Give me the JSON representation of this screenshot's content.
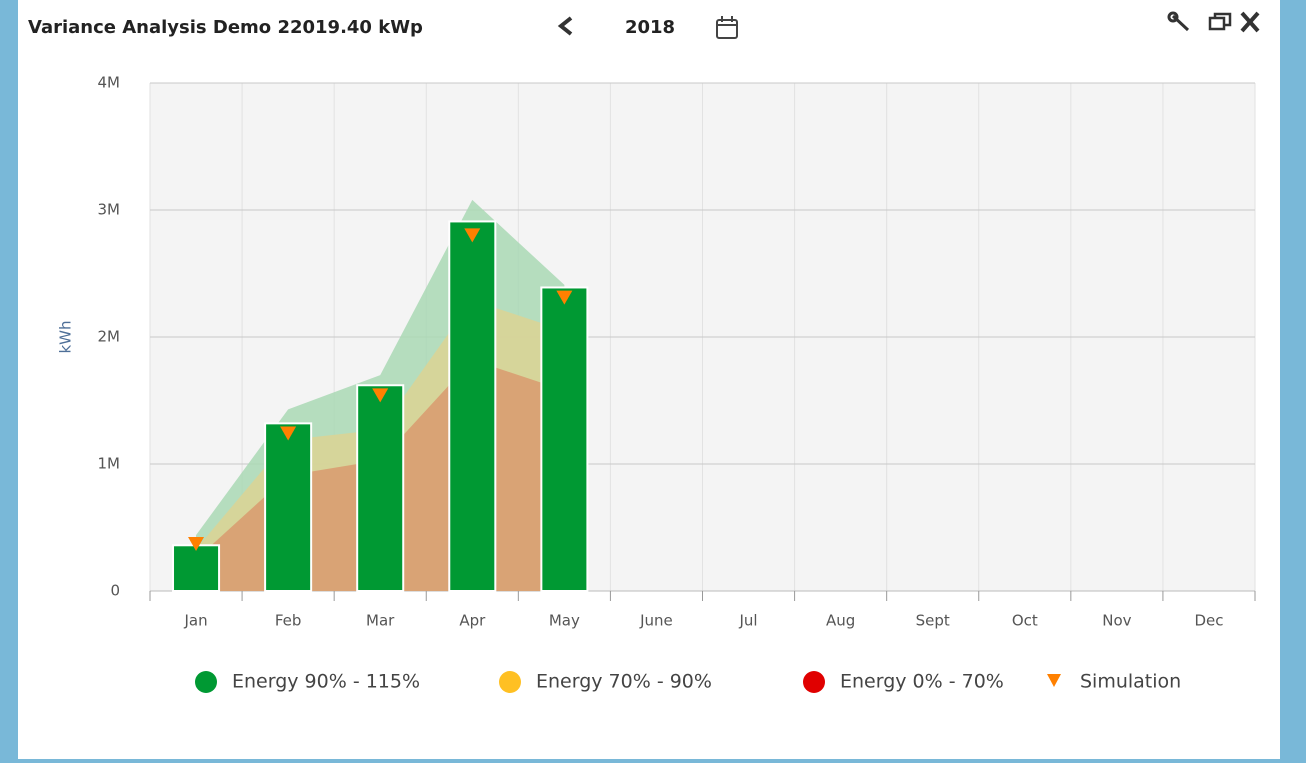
{
  "header": {
    "title": "Variance Analysis Demo 22019.40 kWp",
    "year": "2018"
  },
  "chart_data": {
    "type": "bar",
    "ylabel": "kWh",
    "categories": [
      "Jan",
      "Feb",
      "Mar",
      "Apr",
      "May",
      "June",
      "Jul",
      "Aug",
      "Sept",
      "Oct",
      "Nov",
      "Dec"
    ],
    "ylim": [
      0,
      4000000
    ],
    "yticks": [
      0,
      {
        "value": 1000000,
        "label": "1M"
      },
      {
        "value": 2000000,
        "label": "2M"
      },
      {
        "value": 3000000,
        "label": "3M"
      },
      {
        "value": 4000000,
        "label": "4M"
      }
    ],
    "grid": true,
    "series": [
      {
        "name": "Energy 90% - 115%",
        "color": "#009933",
        "values": [
          360000,
          1320000,
          1620000,
          2910000,
          2390000,
          null,
          null,
          null,
          null,
          null,
          null,
          null
        ]
      },
      {
        "name": "Energy 70% - 90%",
        "color": "#ffc023",
        "values": [
          null,
          null,
          null,
          null,
          null,
          null,
          null,
          null,
          null,
          null,
          null,
          null
        ]
      },
      {
        "name": "Energy 0% - 70%",
        "color": "#e00000",
        "values": [
          null,
          null,
          null,
          null,
          null,
          null,
          null,
          null,
          null,
          null,
          null,
          null
        ]
      },
      {
        "name": "Simulation",
        "color": "#ff8000",
        "marker": "triangle-down",
        "values": [
          370000,
          1240000,
          1540000,
          2800000,
          2310000,
          null,
          null,
          null,
          null,
          null,
          null,
          null
        ]
      }
    ],
    "bands": [
      {
        "color": "#a9d8b4",
        "values": [
          440000,
          1430000,
          1700000,
          3080000,
          2410000,
          null,
          null,
          null,
          null,
          null,
          null,
          null
        ]
      },
      {
        "color": "#dcd394",
        "values": [
          330000,
          1190000,
          1270000,
          2290000,
          2050000,
          null,
          null,
          null,
          null,
          null,
          null,
          null
        ]
      },
      {
        "color": "#d99a6e",
        "values": [
          250000,
          910000,
          1030000,
          1820000,
          1580000,
          null,
          null,
          null,
          null,
          null,
          null,
          null
        ]
      }
    ]
  }
}
